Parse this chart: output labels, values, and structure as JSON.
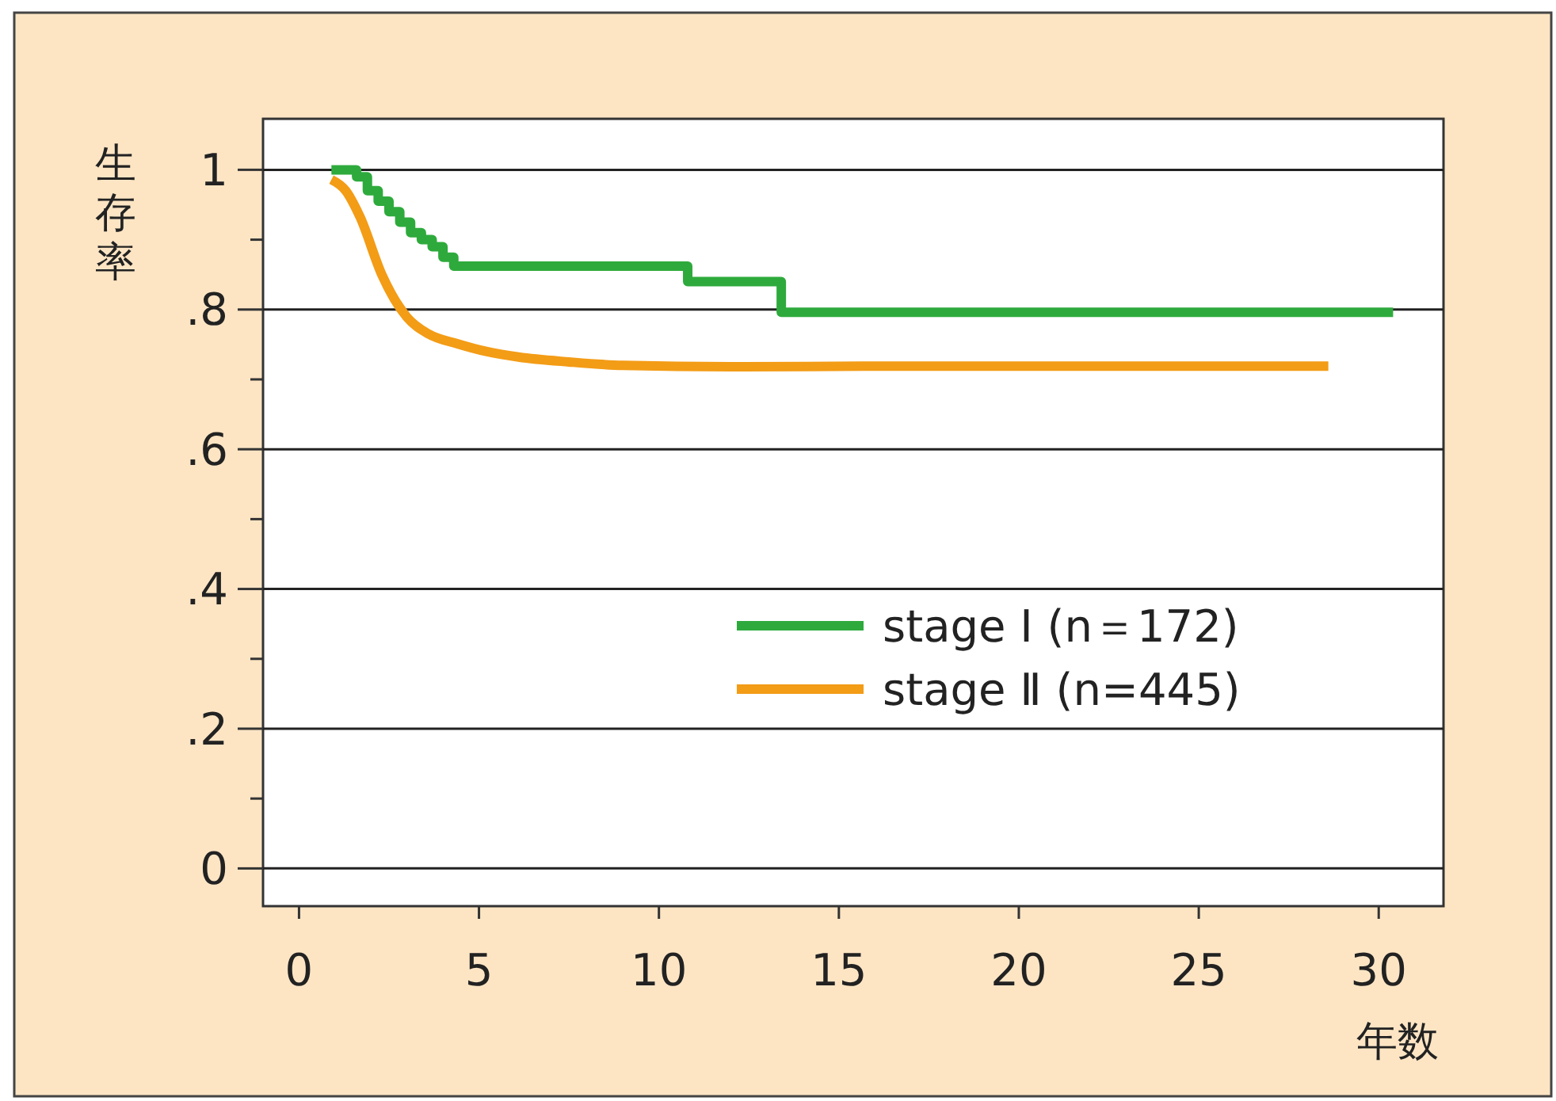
{
  "chart_data": {
    "type": "line",
    "xlabel": "年数",
    "ylabel": "生存率",
    "xlim": [
      -1,
      31.8
    ],
    "xticks": [
      0,
      5,
      10,
      15,
      20,
      25,
      30
    ],
    "ylim": [
      -0.054,
      1.073
    ],
    "yticks": [
      0,
      {
        "value": 0.1,
        "label": null
      },
      {
        "value": 0.2,
        "label": ".2"
      },
      {
        "value": 0.3,
        "label": null
      },
      {
        "value": 0.4,
        "label": ".4"
      },
      {
        "value": 0.5,
        "label": null
      },
      {
        "value": 0.6,
        "label": ".6"
      },
      {
        "value": 0.7,
        "label": null
      },
      {
        "value": 0.8,
        "label": ".8"
      },
      {
        "value": 0.9,
        "label": null
      },
      1
    ],
    "grid": "y",
    "legend": "right",
    "line_style": "solid",
    "marker": "none",
    "series": [
      {
        "name": "stage Ⅰ (n＝172)",
        "type": "step",
        "color": "#2eaa3c",
        "x": [
          0.9,
          1.6,
          1.9,
          2.2,
          2.5,
          2.8,
          3.1,
          3.4,
          3.7,
          4.0,
          4.3,
          10.8,
          13.4,
          30.4
        ],
        "values": [
          1,
          0.99,
          0.97,
          0.955,
          0.94,
          0.925,
          0.91,
          0.9,
          0.89,
          0.875,
          0.862,
          0.84,
          0.796,
          0.796
        ]
      },
      {
        "name": "stage Ⅱ (n=445)",
        "color": "#f39c16",
        "x": [
          0.9,
          1.3,
          1.7,
          2.3,
          3.0,
          3.6,
          4.4,
          5.2,
          6.1,
          7.5,
          9,
          12,
          16,
          20,
          24,
          28.6
        ],
        "values": [
          0.986,
          0.97,
          0.932,
          0.85,
          0.789,
          0.765,
          0.751,
          0.74,
          0.732,
          0.725,
          0.72,
          0.718,
          0.719,
          0.719,
          0.719,
          0.719
        ]
      }
    ]
  }
}
